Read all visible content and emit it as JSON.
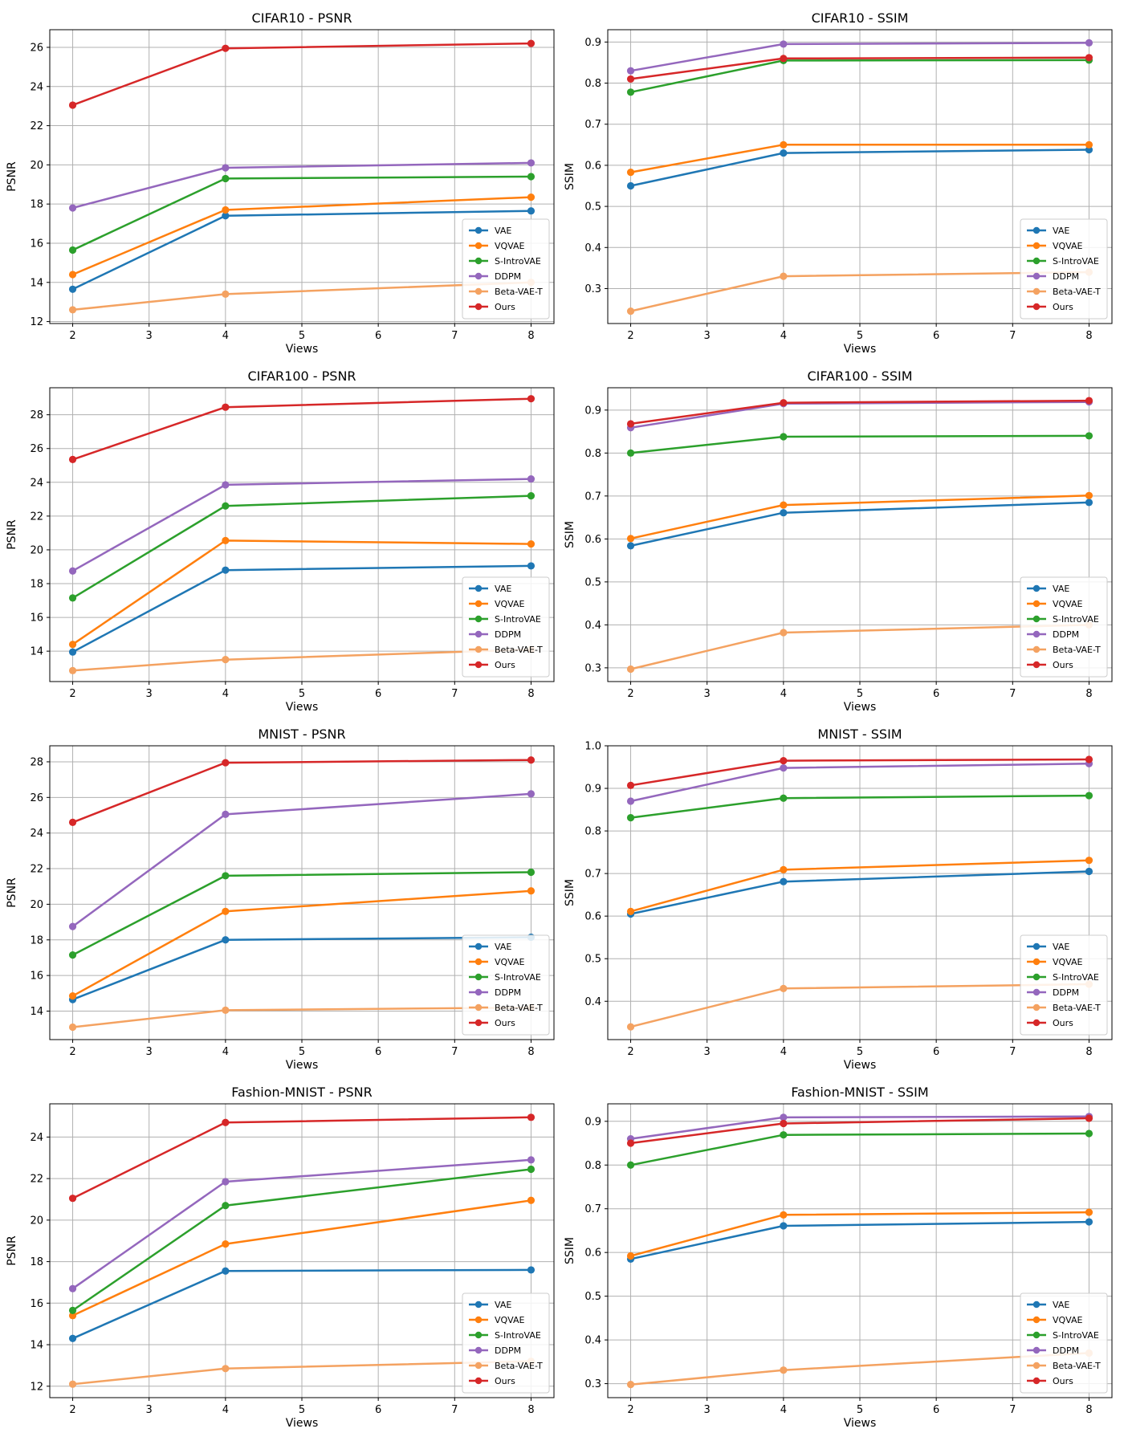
{
  "figure": {
    "background": "#ffffff"
  },
  "chart_data": [
    {
      "type": "line",
      "title": "CIFAR10 - PSNR",
      "xlabel": "Views",
      "ylabel": "PSNR",
      "x": [
        2,
        4,
        8
      ],
      "xlim": [
        1.7,
        8.3
      ],
      "ylim": [
        11.9,
        26.9
      ],
      "xticks": [
        2,
        3,
        4,
        5,
        6,
        7,
        8
      ],
      "yticks": [
        12,
        14,
        16,
        18,
        20,
        22,
        24,
        26
      ],
      "legend": "lower-right",
      "series": [
        {
          "name": "VAE",
          "color": "#1f77b4",
          "values": [
            13.65,
            17.4,
            17.65
          ]
        },
        {
          "name": "VQVAE",
          "color": "#ff7f0e",
          "values": [
            14.4,
            17.7,
            18.35
          ]
        },
        {
          "name": "S-IntroVAE",
          "color": "#2ca02c",
          "values": [
            15.65,
            19.3,
            19.4
          ]
        },
        {
          "name": "DDPM",
          "color": "#9467bd",
          "values": [
            17.8,
            19.85,
            20.1
          ]
        },
        {
          "name": "Beta-VAE-T",
          "color": "#f4a261",
          "values": [
            12.6,
            13.4,
            14.0
          ]
        },
        {
          "name": "Ours",
          "color": "#d62728",
          "values": [
            23.05,
            25.95,
            26.2
          ]
        }
      ]
    },
    {
      "type": "line",
      "title": "CIFAR10 - SSIM",
      "xlabel": "Views",
      "ylabel": "SSIM",
      "x": [
        2,
        4,
        8
      ],
      "xlim": [
        1.7,
        8.3
      ],
      "ylim": [
        0.215,
        0.93
      ],
      "xticks": [
        2,
        3,
        4,
        5,
        6,
        7,
        8
      ],
      "yticks": [
        0.3,
        0.4,
        0.5,
        0.6,
        0.7,
        0.8,
        0.9
      ],
      "legend": "lower-right",
      "series": [
        {
          "name": "VAE",
          "color": "#1f77b4",
          "values": [
            0.55,
            0.63,
            0.638
          ]
        },
        {
          "name": "VQVAE",
          "color": "#ff7f0e",
          "values": [
            0.583,
            0.65,
            0.65
          ]
        },
        {
          "name": "S-IntroVAE",
          "color": "#2ca02c",
          "values": [
            0.778,
            0.855,
            0.856
          ]
        },
        {
          "name": "DDPM",
          "color": "#9467bd",
          "values": [
            0.83,
            0.895,
            0.898
          ]
        },
        {
          "name": "Beta-VAE-T",
          "color": "#f4a261",
          "values": [
            0.245,
            0.33,
            0.34
          ]
        },
        {
          "name": "Ours",
          "color": "#d62728",
          "values": [
            0.81,
            0.86,
            0.862
          ]
        }
      ]
    },
    {
      "type": "line",
      "title": "CIFAR100 - PSNR",
      "xlabel": "Views",
      "ylabel": "PSNR",
      "x": [
        2,
        4,
        8
      ],
      "xlim": [
        1.7,
        8.3
      ],
      "ylim": [
        12.2,
        29.6
      ],
      "xticks": [
        2,
        3,
        4,
        5,
        6,
        7,
        8
      ],
      "yticks": [
        14,
        16,
        18,
        20,
        22,
        24,
        26,
        28
      ],
      "legend": "lower-right",
      "series": [
        {
          "name": "VAE",
          "color": "#1f77b4",
          "values": [
            13.95,
            18.8,
            19.05
          ]
        },
        {
          "name": "VQVAE",
          "color": "#ff7f0e",
          "values": [
            14.4,
            20.55,
            20.35
          ]
        },
        {
          "name": "S-IntroVAE",
          "color": "#2ca02c",
          "values": [
            17.15,
            22.6,
            23.2
          ]
        },
        {
          "name": "DDPM",
          "color": "#9467bd",
          "values": [
            18.75,
            23.85,
            24.2
          ]
        },
        {
          "name": "Beta-VAE-T",
          "color": "#f4a261",
          "values": [
            12.85,
            13.5,
            14.1
          ]
        },
        {
          "name": "Ours",
          "color": "#d62728",
          "values": [
            25.35,
            28.45,
            28.95
          ]
        }
      ]
    },
    {
      "type": "line",
      "title": "CIFAR100 - SSIM",
      "xlabel": "Views",
      "ylabel": "SSIM",
      "x": [
        2,
        4,
        8
      ],
      "xlim": [
        1.7,
        8.3
      ],
      "ylim": [
        0.268,
        0.952
      ],
      "xticks": [
        2,
        3,
        4,
        5,
        6,
        7,
        8
      ],
      "yticks": [
        0.3,
        0.4,
        0.5,
        0.6,
        0.7,
        0.8,
        0.9
      ],
      "legend": "lower-right",
      "series": [
        {
          "name": "VAE",
          "color": "#1f77b4",
          "values": [
            0.584,
            0.661,
            0.685
          ]
        },
        {
          "name": "VQVAE",
          "color": "#ff7f0e",
          "values": [
            0.601,
            0.679,
            0.701
          ]
        },
        {
          "name": "S-IntroVAE",
          "color": "#2ca02c",
          "values": [
            0.8,
            0.838,
            0.84
          ]
        },
        {
          "name": "DDPM",
          "color": "#9467bd",
          "values": [
            0.859,
            0.915,
            0.919
          ]
        },
        {
          "name": "Beta-VAE-T",
          "color": "#f4a261",
          "values": [
            0.297,
            0.382,
            0.4
          ]
        },
        {
          "name": "Ours",
          "color": "#d62728",
          "values": [
            0.868,
            0.917,
            0.922
          ]
        }
      ]
    },
    {
      "type": "line",
      "title": "MNIST - PSNR",
      "xlabel": "Views",
      "ylabel": "PSNR",
      "x": [
        2,
        4,
        8
      ],
      "xlim": [
        1.7,
        8.3
      ],
      "ylim": [
        12.4,
        28.9
      ],
      "xticks": [
        2,
        3,
        4,
        5,
        6,
        7,
        8
      ],
      "yticks": [
        14,
        16,
        18,
        20,
        22,
        24,
        26,
        28
      ],
      "legend": "lower-right",
      "series": [
        {
          "name": "VAE",
          "color": "#1f77b4",
          "values": [
            14.65,
            18.0,
            18.15
          ]
        },
        {
          "name": "VQVAE",
          "color": "#ff7f0e",
          "values": [
            14.85,
            19.6,
            20.75
          ]
        },
        {
          "name": "S-IntroVAE",
          "color": "#2ca02c",
          "values": [
            17.15,
            21.6,
            21.8
          ]
        },
        {
          "name": "DDPM",
          "color": "#9467bd",
          "values": [
            18.75,
            25.05,
            26.2
          ]
        },
        {
          "name": "Beta-VAE-T",
          "color": "#f4a261",
          "values": [
            13.1,
            14.05,
            14.2
          ]
        },
        {
          "name": "Ours",
          "color": "#d62728",
          "values": [
            24.6,
            27.95,
            28.1
          ]
        }
      ]
    },
    {
      "type": "line",
      "title": "MNIST - SSIM",
      "xlabel": "Views",
      "ylabel": "SSIM",
      "x": [
        2,
        4,
        8
      ],
      "xlim": [
        1.7,
        8.3
      ],
      "ylim": [
        0.31,
        1.0
      ],
      "xticks": [
        2,
        3,
        4,
        5,
        6,
        7,
        8
      ],
      "yticks": [
        0.4,
        0.5,
        0.6,
        0.7,
        0.8,
        0.9,
        1.0
      ],
      "legend": "lower-right",
      "series": [
        {
          "name": "VAE",
          "color": "#1f77b4",
          "values": [
            0.605,
            0.681,
            0.705
          ]
        },
        {
          "name": "VQVAE",
          "color": "#ff7f0e",
          "values": [
            0.611,
            0.709,
            0.731
          ]
        },
        {
          "name": "S-IntroVAE",
          "color": "#2ca02c",
          "values": [
            0.831,
            0.877,
            0.883
          ]
        },
        {
          "name": "DDPM",
          "color": "#9467bd",
          "values": [
            0.87,
            0.948,
            0.958
          ]
        },
        {
          "name": "Beta-VAE-T",
          "color": "#f4a261",
          "values": [
            0.34,
            0.43,
            0.44
          ]
        },
        {
          "name": "Ours",
          "color": "#d62728",
          "values": [
            0.907,
            0.965,
            0.968
          ]
        }
      ]
    },
    {
      "type": "line",
      "title": "Fashion-MNIST - PSNR",
      "xlabel": "Views",
      "ylabel": "PSNR",
      "x": [
        2,
        4,
        8
      ],
      "xlim": [
        1.7,
        8.3
      ],
      "ylim": [
        11.45,
        25.6
      ],
      "xticks": [
        2,
        3,
        4,
        5,
        6,
        7,
        8
      ],
      "yticks": [
        12,
        14,
        16,
        18,
        20,
        22,
        24
      ],
      "legend": "lower-right",
      "series": [
        {
          "name": "VAE",
          "color": "#1f77b4",
          "values": [
            14.3,
            17.55,
            17.6
          ]
        },
        {
          "name": "VQVAE",
          "color": "#ff7f0e",
          "values": [
            15.4,
            18.85,
            20.95
          ]
        },
        {
          "name": "S-IntroVAE",
          "color": "#2ca02c",
          "values": [
            15.65,
            20.7,
            22.45
          ]
        },
        {
          "name": "DDPM",
          "color": "#9467bd",
          "values": [
            16.7,
            21.85,
            22.9
          ]
        },
        {
          "name": "Beta-VAE-T",
          "color": "#f4a261",
          "values": [
            12.1,
            12.85,
            13.2
          ]
        },
        {
          "name": "Ours",
          "color": "#d62728",
          "values": [
            21.05,
            24.7,
            24.95
          ]
        }
      ]
    },
    {
      "type": "line",
      "title": "Fashion-MNIST - SSIM",
      "xlabel": "Views",
      "ylabel": "SSIM",
      "x": [
        2,
        4,
        8
      ],
      "xlim": [
        1.7,
        8.3
      ],
      "ylim": [
        0.268,
        0.94
      ],
      "xticks": [
        2,
        3,
        4,
        5,
        6,
        7,
        8
      ],
      "yticks": [
        0.3,
        0.4,
        0.5,
        0.6,
        0.7,
        0.8,
        0.9
      ],
      "legend": "lower-right",
      "series": [
        {
          "name": "VAE",
          "color": "#1f77b4",
          "values": [
            0.585,
            0.661,
            0.67
          ]
        },
        {
          "name": "VQVAE",
          "color": "#ff7f0e",
          "values": [
            0.592,
            0.686,
            0.692
          ]
        },
        {
          "name": "S-IntroVAE",
          "color": "#2ca02c",
          "values": [
            0.8,
            0.869,
            0.872
          ]
        },
        {
          "name": "DDPM",
          "color": "#9467bd",
          "values": [
            0.86,
            0.909,
            0.911
          ]
        },
        {
          "name": "Beta-VAE-T",
          "color": "#f4a261",
          "values": [
            0.298,
            0.331,
            0.37
          ]
        },
        {
          "name": "Ours",
          "color": "#d62728",
          "values": [
            0.85,
            0.895,
            0.907
          ]
        }
      ]
    }
  ]
}
